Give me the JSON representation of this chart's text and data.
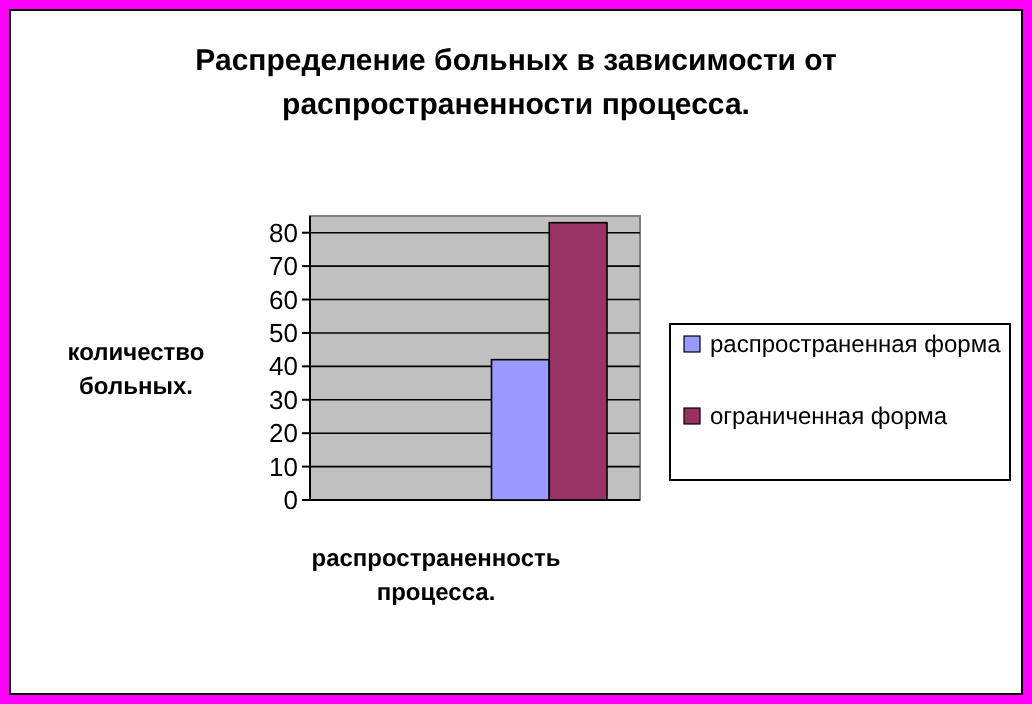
{
  "chart_data": {
    "type": "bar",
    "title": "Распределение больных в зависимости от распространенности процесса.",
    "xlabel": "распространенность процесса.",
    "ylabel": "количество больных.",
    "categories": [
      null
    ],
    "series": [
      {
        "name": "распространенная форма",
        "color": "#9999ff",
        "values": [
          42
        ]
      },
      {
        "name": "ограниченная форма",
        "color": "#993366",
        "values": [
          83
        ]
      }
    ],
    "ylim": [
      0,
      85
    ],
    "yticks": [
      0,
      10,
      20,
      30,
      40,
      50,
      60,
      70,
      80
    ],
    "grid": "y",
    "legend": "right"
  }
}
